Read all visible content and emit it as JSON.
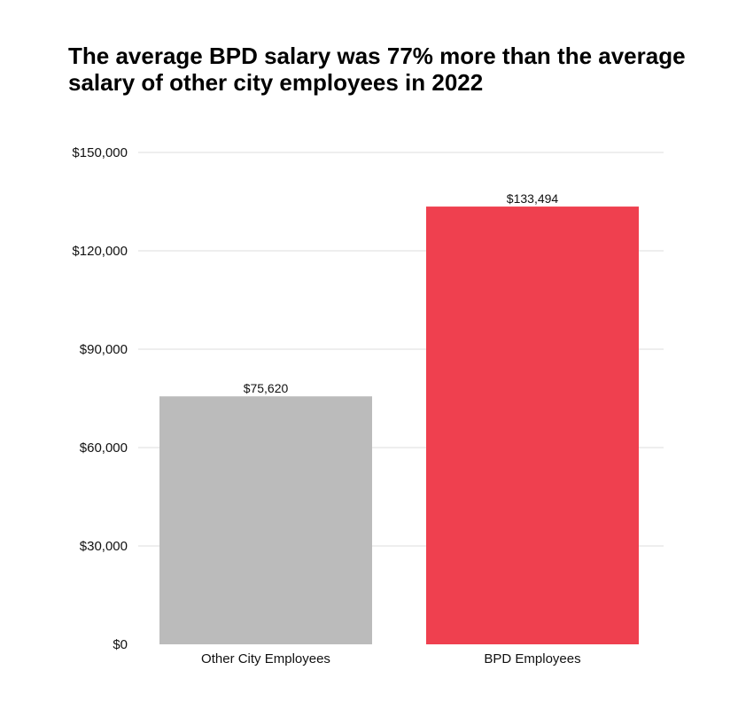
{
  "chart_data": {
    "type": "bar",
    "title": "The average BPD salary was 77% more than the average salary of other city employees in 2022",
    "xlabel": "",
    "ylabel": "",
    "categories": [
      "Other City Employees",
      "BPD Employees"
    ],
    "values": [
      75620,
      133494
    ],
    "value_labels": [
      "$75,620",
      "$133,494"
    ],
    "bar_colors": [
      "#bbbbbb",
      "#ef404f"
    ],
    "ylim": [
      0,
      150000
    ],
    "yticks": [
      0,
      30000,
      60000,
      90000,
      120000,
      150000
    ],
    "ytick_labels": [
      "$0",
      "$30,000",
      "$60,000",
      "$90,000",
      "$120,000",
      "$150,000"
    ],
    "grid": true,
    "legend": "none"
  }
}
